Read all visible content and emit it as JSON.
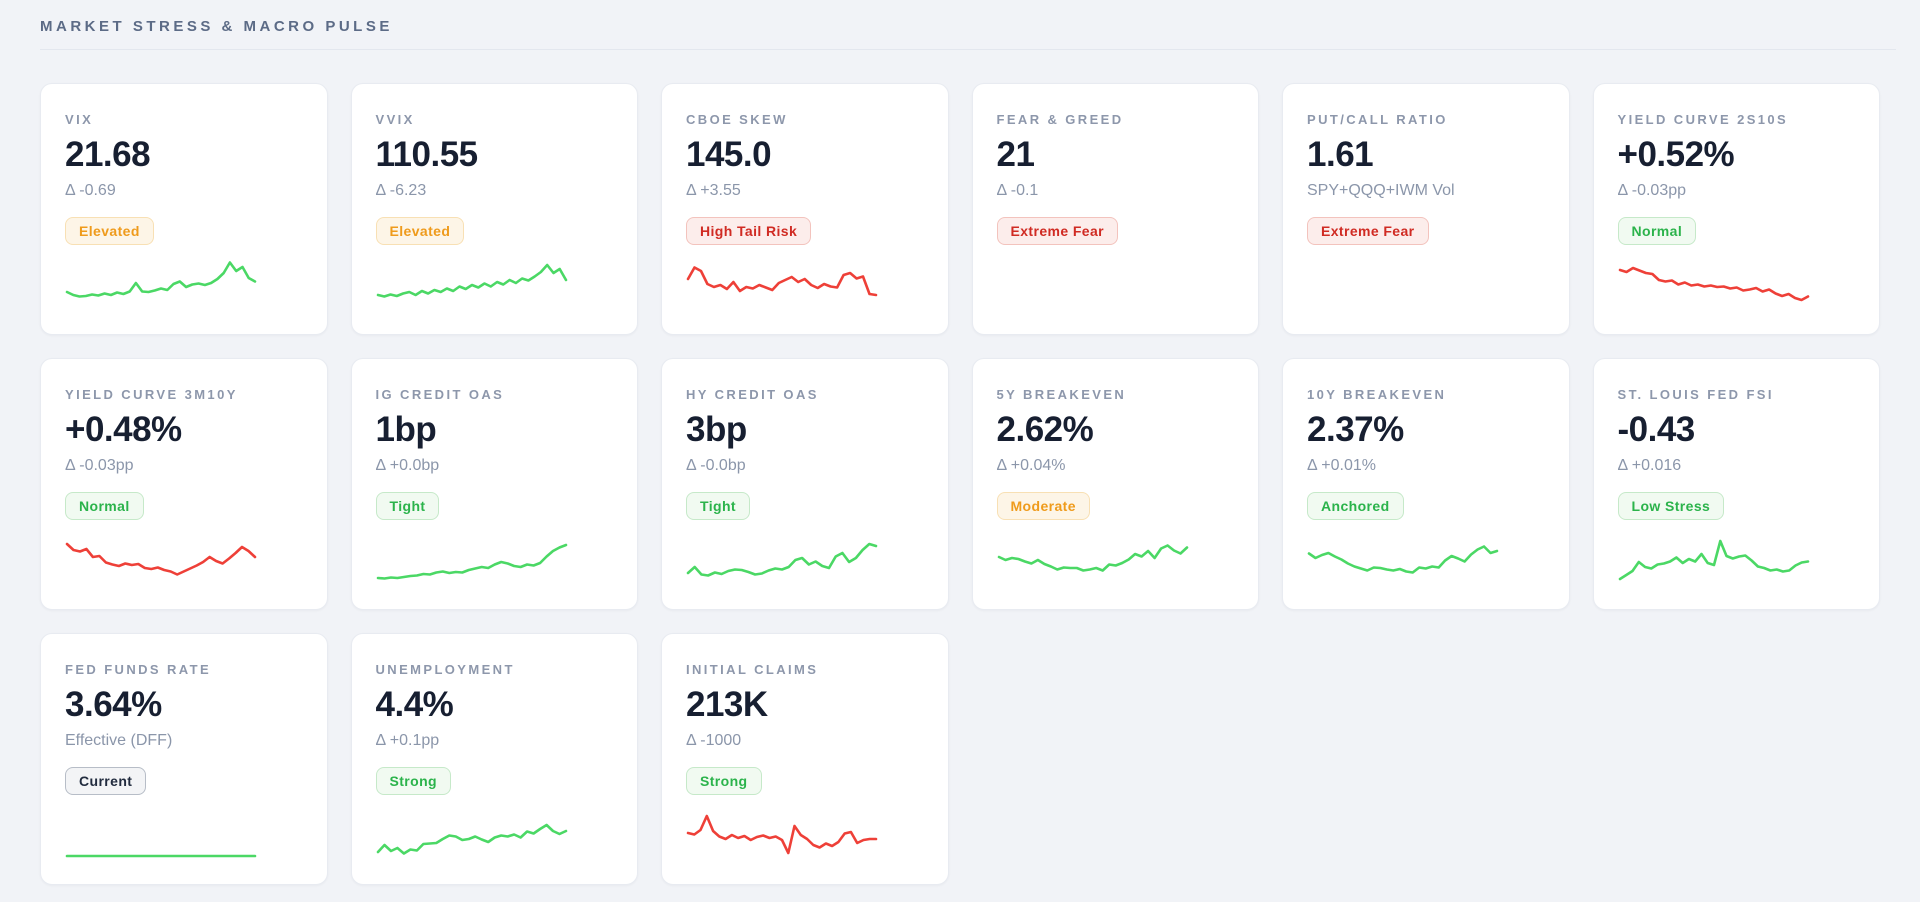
{
  "page": {
    "title": "MARKET STRESS & MACRO PULSE"
  },
  "colors": {
    "green": "#4bd865",
    "red": "#ee4038",
    "title": "#5c6b86",
    "value": "#171f31",
    "muted": "#8b96aa",
    "background": "#f1f3f7",
    "card_border": "#e8ebf1"
  },
  "cards": [
    {
      "label": "VIX",
      "value": "21.68",
      "sub": "Δ -0.69",
      "badge": {
        "label": "Elevated",
        "type": "warn"
      },
      "spark": {
        "tone": "green",
        "points": [
          36,
          30,
          27,
          28,
          31,
          29,
          33,
          30,
          35,
          32,
          37,
          54,
          37,
          36,
          39,
          43,
          40,
          52,
          57,
          46,
          51,
          53,
          50,
          54,
          62,
          74,
          95,
          78,
          86,
          64,
          57
        ]
      }
    },
    {
      "label": "VVIX",
      "value": "110.55",
      "sub": "Δ -6.23",
      "badge": {
        "label": "Elevated",
        "type": "warn"
      },
      "spark": {
        "tone": "green",
        "points": [
          30,
          27,
          31,
          28,
          33,
          36,
          30,
          38,
          33,
          40,
          36,
          43,
          38,
          47,
          42,
          50,
          45,
          53,
          47,
          56,
          51,
          60,
          54,
          63,
          59,
          67,
          76,
          90,
          74,
          82,
          60
        ]
      }
    },
    {
      "label": "CBOE SKEW",
      "value": "145.0",
      "sub": "Δ +3.55",
      "badge": {
        "label": "High Tail Risk",
        "type": "danger"
      },
      "spark": {
        "tone": "red",
        "points": [
          62,
          85,
          78,
          52,
          46,
          50,
          42,
          56,
          38,
          46,
          43,
          50,
          45,
          40,
          54,
          60,
          66,
          56,
          62,
          50,
          44,
          52,
          47,
          45,
          70,
          74,
          63,
          67,
          32,
          30
        ]
      }
    },
    {
      "label": "FEAR & GREED",
      "value": "21",
      "sub": "Δ -0.1",
      "badge": {
        "label": "Extreme Fear",
        "type": "danger"
      },
      "spark": null
    },
    {
      "label": "PUT/CALL RATIO",
      "value": "1.61",
      "sub": "SPY+QQQ+IWM Vol",
      "badge": {
        "label": "Extreme Fear",
        "type": "danger"
      },
      "spark": null
    },
    {
      "label": "YIELD CURVE 2S10S",
      "value": "+0.52%",
      "sub": "Δ -0.03pp",
      "badge": {
        "label": "Normal",
        "type": "success"
      },
      "spark": {
        "tone": "red",
        "points": [
          80,
          76,
          84,
          79,
          74,
          72,
          60,
          57,
          59,
          51,
          55,
          49,
          51,
          47,
          49,
          46,
          47,
          43,
          45,
          39,
          41,
          44,
          37,
          41,
          33,
          28,
          32,
          24,
          20,
          27
        ]
      }
    },
    {
      "label": "YIELD CURVE 3M10Y",
      "value": "+0.48%",
      "sub": "Δ -0.03pp",
      "badge": {
        "label": "Normal",
        "type": "success"
      },
      "spark": {
        "tone": "red",
        "points": [
          82,
          70,
          67,
          72,
          56,
          58,
          45,
          41,
          38,
          43,
          40,
          42,
          34,
          32,
          35,
          30,
          27,
          21,
          27,
          33,
          39,
          46,
          56,
          48,
          43,
          53,
          64,
          76,
          68,
          56
        ]
      }
    },
    {
      "label": "IG CREDIT OAS",
      "value": "1bp",
      "sub": "Δ +0.0bp",
      "badge": {
        "label": "Tight",
        "type": "success"
      },
      "spark": {
        "tone": "green",
        "points": [
          14,
          13,
          15,
          14,
          16,
          18,
          19,
          22,
          21,
          25,
          27,
          24,
          26,
          25,
          30,
          33,
          36,
          34,
          41,
          46,
          43,
          38,
          36,
          41,
          39,
          44,
          57,
          68,
          75,
          80
        ]
      }
    },
    {
      "label": "HY CREDIT OAS",
      "value": "3bp",
      "sub": "Δ -0.0bp",
      "badge": {
        "label": "Tight",
        "type": "success"
      },
      "spark": {
        "tone": "green",
        "points": [
          24,
          36,
          21,
          19,
          25,
          22,
          28,
          31,
          30,
          26,
          21,
          23,
          29,
          33,
          31,
          36,
          50,
          54,
          41,
          47,
          38,
          34,
          57,
          64,
          46,
          54,
          70,
          82,
          78
        ]
      }
    },
    {
      "label": "5Y BREAKEVEN",
      "value": "2.62%",
      "sub": "Δ +0.04%",
      "badge": {
        "label": "Moderate",
        "type": "warn"
      },
      "spark": {
        "tone": "green",
        "points": [
          56,
          50,
          54,
          52,
          47,
          43,
          50,
          42,
          37,
          31,
          35,
          34,
          34,
          29,
          31,
          34,
          29,
          41,
          39,
          44,
          51,
          62,
          57,
          68,
          54,
          73,
          79,
          69,
          63,
          75
        ]
      }
    },
    {
      "label": "10Y BREAKEVEN",
      "value": "2.37%",
      "sub": "Δ +0.01%",
      "badge": {
        "label": "Anchored",
        "type": "success"
      },
      "spark": {
        "tone": "green",
        "points": [
          63,
          54,
          60,
          64,
          57,
          51,
          43,
          37,
          33,
          29,
          35,
          34,
          31,
          29,
          32,
          27,
          25,
          35,
          33,
          37,
          35,
          49,
          58,
          53,
          47,
          61,
          71,
          77,
          64,
          68
        ]
      }
    },
    {
      "label": "ST. LOUIS FED FSI",
      "value": "-0.43",
      "sub": "Δ +0.016",
      "badge": {
        "label": "Low Stress",
        "type": "success"
      },
      "spark": {
        "tone": "green",
        "points": [
          12,
          20,
          28,
          46,
          36,
          33,
          41,
          43,
          47,
          55,
          44,
          52,
          47,
          62,
          44,
          40,
          88,
          58,
          53,
          57,
          59,
          49,
          37,
          34,
          29,
          31,
          27,
          29,
          39,
          45,
          47
        ]
      }
    },
    {
      "label": "FED FUNDS RATE",
      "value": "3.64%",
      "sub": "Effective (DFF)",
      "badge": {
        "label": "Current",
        "type": "neutral"
      },
      "spark": {
        "tone": "green",
        "points": [
          8,
          8,
          8,
          8,
          8,
          8,
          8,
          8,
          8,
          8
        ]
      }
    },
    {
      "label": "UNEMPLOYMENT",
      "value": "4.4%",
      "sub": "Δ +0.1pp",
      "badge": {
        "label": "Strong",
        "type": "success"
      },
      "spark": {
        "tone": "green",
        "points": [
          16,
          30,
          18,
          24,
          13,
          21,
          19,
          32,
          33,
          34,
          42,
          49,
          47,
          40,
          42,
          47,
          41,
          36,
          45,
          49,
          47,
          51,
          45,
          57,
          53,
          62,
          70,
          58,
          52,
          58
        ]
      }
    },
    {
      "label": "INITIAL CLAIMS",
      "value": "213K",
      "sub": "Δ -1000",
      "badge": {
        "label": "Strong",
        "type": "success"
      },
      "spark": {
        "tone": "red",
        "points": [
          54,
          51,
          60,
          88,
          58,
          47,
          42,
          50,
          44,
          48,
          40,
          46,
          49,
          44,
          47,
          40,
          14,
          68,
          50,
          42,
          30,
          25,
          33,
          28,
          36,
          53,
          56,
          34,
          40,
          42,
          42
        ]
      }
    }
  ]
}
